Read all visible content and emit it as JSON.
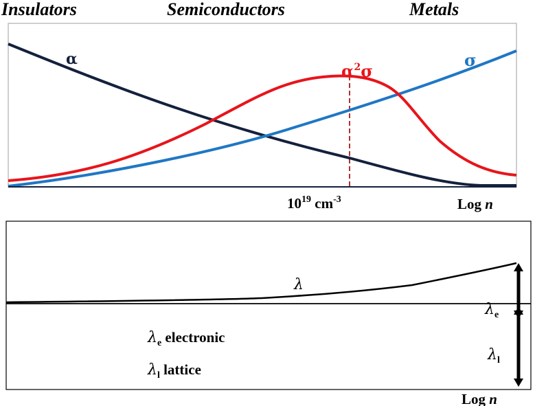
{
  "header": {
    "insulators": "Insulators",
    "semiconductors": "Semiconductors",
    "metals": "Metals"
  },
  "top_panel": {
    "curve_alpha_label": "α",
    "curve_sigma_label": "σ",
    "curve_power_factor_label": {
      "base": "α",
      "sup": "2",
      "tail": "σ"
    },
    "marker_label": {
      "base": "10",
      "sup": "19",
      "tail": " cm",
      "sup2": "-3"
    },
    "x_axis_label": {
      "prefix": "Log ",
      "var": "n"
    },
    "colors": {
      "alpha": "#14213d",
      "sigma": "#1f77c4",
      "power_factor": "#e8141b",
      "marker": "#b03030"
    }
  },
  "bottom_panel": {
    "curve_label": "λ",
    "lambda_e_label": {
      "sym": "λ",
      "sub": "e"
    },
    "lambda_l_label": {
      "sym": "λ",
      "sub": "l"
    },
    "legend_electronic": {
      "sym": "λ",
      "sub": "e",
      "text": " electronic"
    },
    "legend_lattice": {
      "sym": "λ",
      "sub": "l",
      "text": " lattice"
    },
    "x_axis_label": {
      "prefix": "Log ",
      "var": "n"
    }
  }
}
